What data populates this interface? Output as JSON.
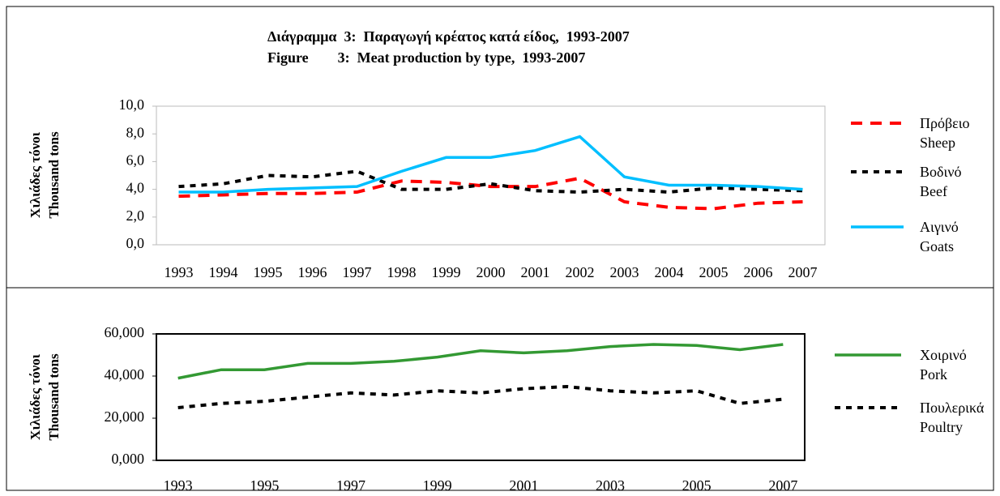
{
  "chart_data": [
    {
      "type": "line",
      "title": "Διάγραμμα  3:  Παραγωγή κρέατος κατά είδος,  1993-2007",
      "subtitle": "Figure        3:  Meat production by type,  1993-2007",
      "ylabel": [
        "Χιλιάδες τόνοι",
        "Thousand tons"
      ],
      "categories": [
        "1993",
        "1994",
        "1995",
        "1996",
        "1997",
        "1998",
        "1999",
        "2000",
        "2001",
        "2002",
        "2003",
        "2004",
        "2005",
        "2006",
        "2007"
      ],
      "ylim": [
        0,
        10
      ],
      "yticks": [
        {
          "value": 0,
          "label": "0,0"
        },
        {
          "value": 2,
          "label": "2,0"
        },
        {
          "value": 4,
          "label": "4,0"
        },
        {
          "value": 6,
          "label": "6,0"
        },
        {
          "value": 8,
          "label": "8,0"
        },
        {
          "value": 10,
          "label": "10,0"
        }
      ],
      "series": [
        {
          "name": [
            "Πρόβειο",
            "Sheep"
          ],
          "color": "#ff0000",
          "dash": "dashed",
          "values": [
            3.5,
            3.6,
            3.7,
            3.7,
            3.8,
            4.6,
            4.5,
            4.2,
            4.2,
            4.8,
            3.1,
            2.7,
            2.6,
            3.0,
            3.1
          ]
        },
        {
          "name": [
            "Βοδινό",
            "Beef"
          ],
          "color": "#000000",
          "dash": "dotted",
          "values": [
            4.2,
            4.4,
            5.0,
            4.9,
            5.3,
            4.0,
            4.0,
            4.4,
            3.9,
            3.8,
            4.0,
            3.8,
            4.1,
            4.0,
            3.9
          ]
        },
        {
          "name": [
            "Αιγινό",
            "Goats"
          ],
          "color": "#00bfff",
          "dash": "solid",
          "values": [
            3.8,
            3.8,
            4.0,
            4.1,
            4.2,
            5.3,
            6.3,
            6.3,
            6.8,
            7.8,
            4.9,
            4.3,
            4.3,
            4.2,
            4.0
          ]
        }
      ]
    },
    {
      "type": "line",
      "ylabel": [
        "Χιλιάδες τόνοι",
        "Thousand tons"
      ],
      "categories": [
        "1993",
        null,
        "1995",
        null,
        "1997",
        null,
        "1999",
        null,
        "2001",
        null,
        "2003",
        null,
        "2005",
        null,
        "2007"
      ],
      "ylim": [
        0,
        60
      ],
      "yticks": [
        {
          "value": 0,
          "label": "0,000"
        },
        {
          "value": 20,
          "label": "20,000"
        },
        {
          "value": 40,
          "label": "40,000"
        },
        {
          "value": 60,
          "label": "60,000"
        }
      ],
      "series": [
        {
          "name": [
            "Χοιρινό",
            "Pork"
          ],
          "color": "#339933",
          "dash": "solid",
          "values": [
            39,
            43,
            43,
            46,
            46,
            47,
            49,
            52,
            51,
            52,
            54,
            55,
            54.5,
            52.5,
            55
          ]
        },
        {
          "name": [
            "Πουλερικά",
            "Poultry"
          ],
          "color": "#000000",
          "dash": "dotted",
          "values": [
            25,
            27,
            28,
            30,
            32,
            31,
            33,
            32,
            34,
            35,
            33,
            32,
            33,
            27,
            29
          ]
        }
      ]
    }
  ]
}
